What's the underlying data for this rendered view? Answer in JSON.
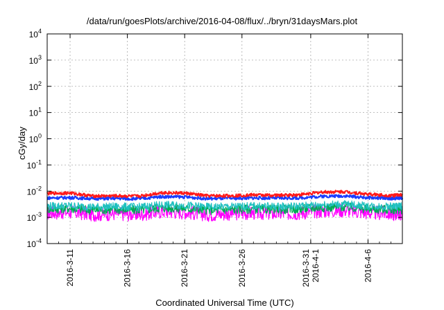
{
  "chart_data": {
    "type": "line",
    "title": "/data/run/goesPlots/archive/2016-04-08/flux/../bryn/31daysMars.plot",
    "xlabel": "Coordinated Universal Time (UTC)",
    "ylabel": "cGy/day",
    "y_scale": "log",
    "ylim": [
      0.0001,
      10000
    ],
    "xlim": [
      "2016-03-09",
      "2016-04-09"
    ],
    "grid": true,
    "y_ticks": [
      {
        "base": "10",
        "exp": "-4"
      },
      {
        "base": "10",
        "exp": "-3"
      },
      {
        "base": "10",
        "exp": "-2"
      },
      {
        "base": "10",
        "exp": "-1"
      },
      {
        "base": "10",
        "exp": "0"
      },
      {
        "base": "10",
        "exp": "1"
      },
      {
        "base": "10",
        "exp": "2"
      },
      {
        "base": "10",
        "exp": "3"
      },
      {
        "base": "10",
        "exp": "4"
      }
    ],
    "x_ticks": [
      {
        "date": "2016-03-11",
        "lines": [
          "2016-3-11"
        ]
      },
      {
        "date": "2016-03-16",
        "lines": [
          "2016-3-16"
        ]
      },
      {
        "date": "2016-03-21",
        "lines": [
          "2016-3-21"
        ]
      },
      {
        "date": "2016-03-26",
        "lines": [
          "2016-3-26"
        ]
      },
      {
        "date": "2016-04-01",
        "lines": [
          "2016-3-31",
          "2016-4-1"
        ]
      },
      {
        "date": "2016-04-06",
        "lines": [
          "2016-4-6"
        ]
      }
    ],
    "series": [
      {
        "color": "#ff00ff",
        "x": [
          "2016-03-09",
          "2016-03-11",
          "2016-03-13",
          "2016-03-15",
          "2016-03-17",
          "2016-03-19",
          "2016-03-21",
          "2016-03-23",
          "2016-03-25",
          "2016-03-27",
          "2016-03-29",
          "2016-03-31",
          "2016-04-02",
          "2016-04-04",
          "2016-04-06",
          "2016-04-08",
          "2016-04-09"
        ],
        "y": [
          0.0015,
          0.0016,
          0.0013,
          0.0014,
          0.0013,
          0.0017,
          0.0016,
          0.0013,
          0.0014,
          0.0015,
          0.0014,
          0.0015,
          0.0018,
          0.0019,
          0.0015,
          0.0014,
          0.0014
        ]
      },
      {
        "color": "#00aa55",
        "x": [
          "2016-03-09",
          "2016-03-11",
          "2016-03-13",
          "2016-03-15",
          "2016-03-17",
          "2016-03-19",
          "2016-03-21",
          "2016-03-23",
          "2016-03-25",
          "2016-03-27",
          "2016-03-29",
          "2016-03-31",
          "2016-04-02",
          "2016-04-04",
          "2016-04-06",
          "2016-04-08",
          "2016-04-09"
        ],
        "y": [
          0.0021,
          0.0022,
          0.0019,
          0.002,
          0.0019,
          0.0023,
          0.0022,
          0.0019,
          0.002,
          0.0021,
          0.002,
          0.0021,
          0.0024,
          0.0025,
          0.0021,
          0.002,
          0.002
        ]
      },
      {
        "color": "#20c0c0",
        "x": [
          "2016-03-09",
          "2016-03-11",
          "2016-03-13",
          "2016-03-15",
          "2016-03-17",
          "2016-03-19",
          "2016-03-21",
          "2016-03-23",
          "2016-03-25",
          "2016-03-27",
          "2016-03-29",
          "2016-03-31",
          "2016-04-02",
          "2016-04-04",
          "2016-04-06",
          "2016-04-08",
          "2016-04-09"
        ],
        "y": [
          0.0027,
          0.0028,
          0.0025,
          0.0026,
          0.0025,
          0.003,
          0.0029,
          0.0025,
          0.0026,
          0.0027,
          0.0026,
          0.0027,
          0.0031,
          0.0032,
          0.0027,
          0.0026,
          0.0027
        ]
      },
      {
        "color": "#1a3cff",
        "x": [
          "2016-03-09",
          "2016-03-11",
          "2016-03-13",
          "2016-03-15",
          "2016-03-17",
          "2016-03-19",
          "2016-03-21",
          "2016-03-23",
          "2016-03-25",
          "2016-03-27",
          "2016-03-29",
          "2016-03-31",
          "2016-04-02",
          "2016-04-04",
          "2016-04-06",
          "2016-04-08",
          "2016-04-09"
        ],
        "y": [
          0.0055,
          0.0057,
          0.0052,
          0.0053,
          0.0051,
          0.0062,
          0.006,
          0.0052,
          0.0053,
          0.0055,
          0.0054,
          0.0055,
          0.0064,
          0.0066,
          0.0056,
          0.0053,
          0.0055
        ]
      },
      {
        "color": "#ff1a1a",
        "x": [
          "2016-03-09",
          "2016-03-11",
          "2016-03-13",
          "2016-03-15",
          "2016-03-17",
          "2016-03-19",
          "2016-03-21",
          "2016-03-23",
          "2016-03-25",
          "2016-03-27",
          "2016-03-29",
          "2016-03-31",
          "2016-04-02",
          "2016-04-04",
          "2016-04-06",
          "2016-04-08",
          "2016-04-09"
        ],
        "y": [
          0.0082,
          0.0085,
          0.0065,
          0.0066,
          0.0064,
          0.0088,
          0.0084,
          0.0066,
          0.0067,
          0.0072,
          0.0069,
          0.0073,
          0.0092,
          0.0095,
          0.0076,
          0.0068,
          0.0072
        ]
      }
    ]
  }
}
